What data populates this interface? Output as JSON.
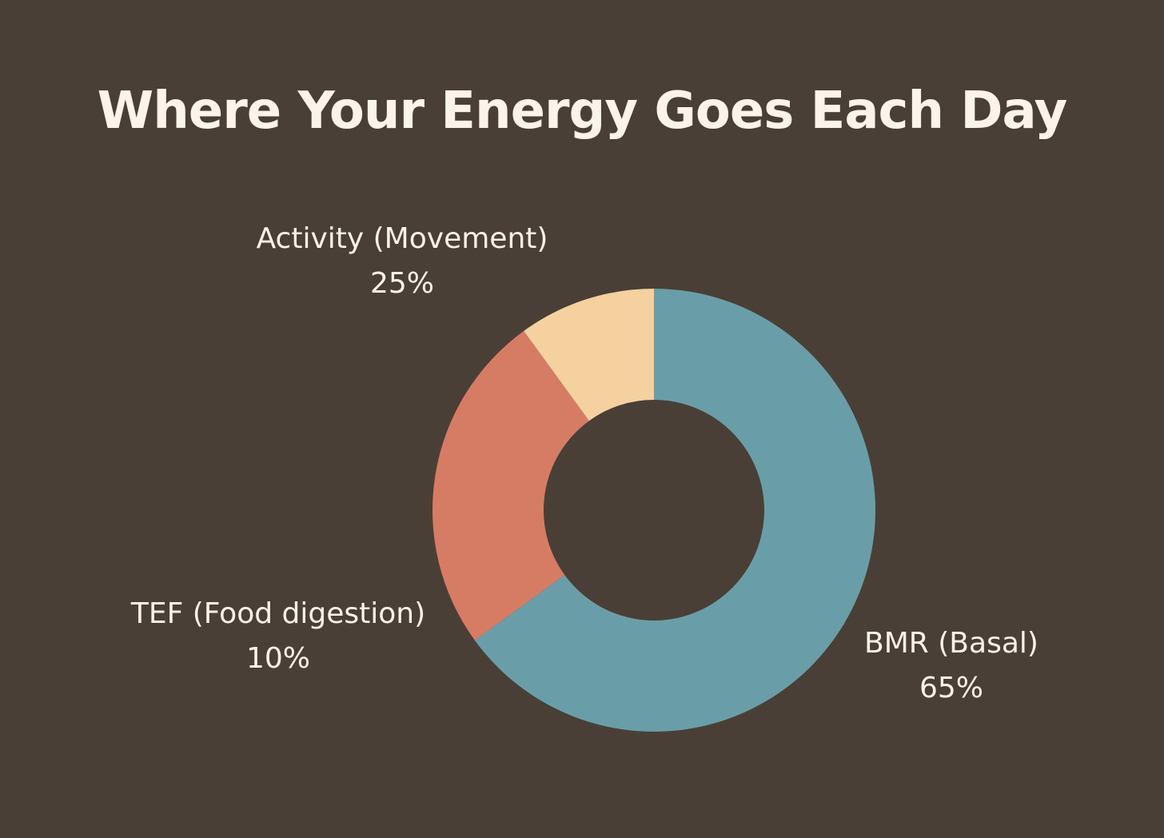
{
  "chart_data": {
    "type": "pie",
    "variant": "donut",
    "title": "Where Your Energy Goes Each Day",
    "slices": [
      {
        "key": "bmr",
        "label": "BMR (Basal)",
        "value": 65,
        "value_label": "65%",
        "color": "#699ea8"
      },
      {
        "key": "activity",
        "label": "Activity (Movement)",
        "value": 25,
        "value_label": "25%",
        "color": "#d67c65"
      },
      {
        "key": "tef",
        "label": "TEF (Food digestion)",
        "value": 10,
        "value_label": "10%",
        "color": "#f4d19e"
      }
    ],
    "legend": "none",
    "grid": false,
    "background": "#4a3f36",
    "text_color": "#fcf3ea"
  }
}
